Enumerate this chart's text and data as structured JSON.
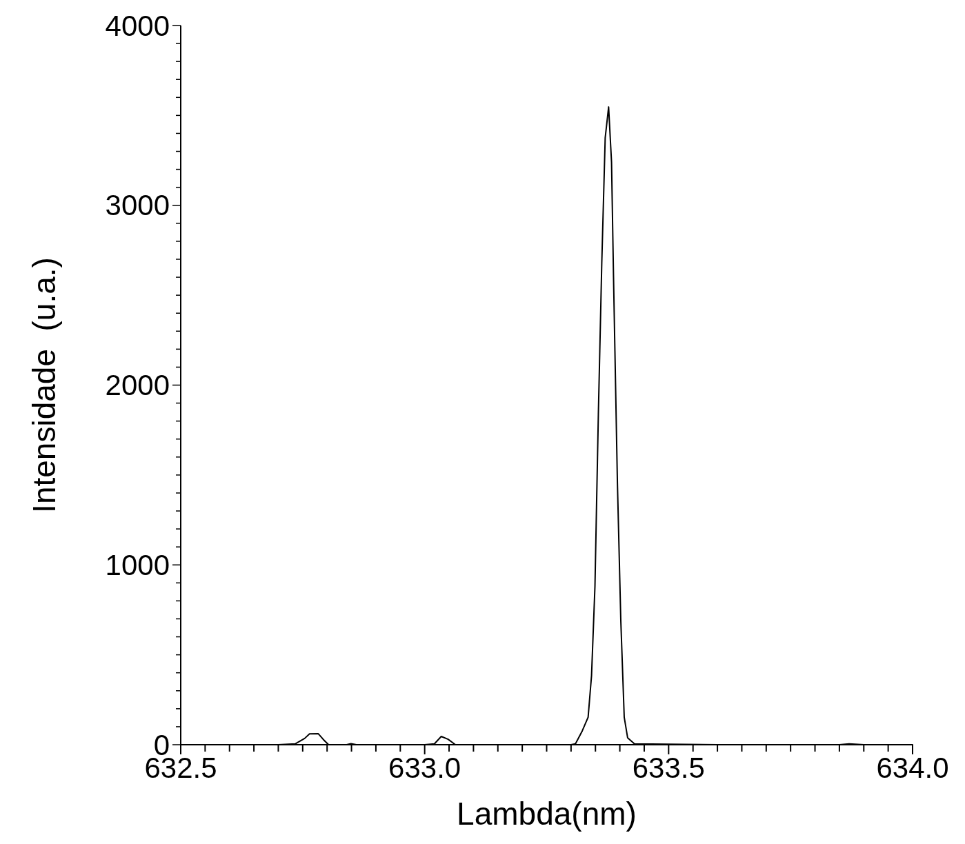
{
  "chart_data": {
    "type": "line",
    "xlabel": "Lambda(nm)",
    "ylabel": "Intensidade  (u.a.)",
    "xlim": [
      632.5,
      634.0
    ],
    "ylim": [
      0,
      4000
    ],
    "xticks": [
      {
        "value": 632.5,
        "label": "632.5"
      },
      {
        "value": 632.55,
        "label": null
      },
      {
        "value": 632.6,
        "label": null
      },
      {
        "value": 632.65,
        "label": null
      },
      {
        "value": 632.7,
        "label": null
      },
      {
        "value": 632.75,
        "label": null
      },
      {
        "value": 632.8,
        "label": null
      },
      {
        "value": 632.85,
        "label": null
      },
      {
        "value": 632.9,
        "label": null
      },
      {
        "value": 632.95,
        "label": null
      },
      {
        "value": 633.0,
        "label": "633.0"
      },
      {
        "value": 633.05,
        "label": null
      },
      {
        "value": 633.1,
        "label": null
      },
      {
        "value": 633.15,
        "label": null
      },
      {
        "value": 633.2,
        "label": null
      },
      {
        "value": 633.25,
        "label": null
      },
      {
        "value": 633.3,
        "label": null
      },
      {
        "value": 633.35,
        "label": null
      },
      {
        "value": 633.4,
        "label": null
      },
      {
        "value": 633.45,
        "label": null
      },
      {
        "value": 633.5,
        "label": "633.5"
      },
      {
        "value": 633.55,
        "label": null
      },
      {
        "value": 633.6,
        "label": null
      },
      {
        "value": 633.65,
        "label": null
      },
      {
        "value": 633.7,
        "label": null
      },
      {
        "value": 633.75,
        "label": null
      },
      {
        "value": 633.8,
        "label": null
      },
      {
        "value": 633.85,
        "label": null
      },
      {
        "value": 633.9,
        "label": null
      },
      {
        "value": 633.95,
        "label": null
      },
      {
        "value": 634.0,
        "label": "634.0"
      }
    ],
    "yticks": [
      0,
      {
        "value": 100,
        "label": null
      },
      {
        "value": 200,
        "label": null
      },
      {
        "value": 300,
        "label": null
      },
      {
        "value": 400,
        "label": null
      },
      {
        "value": 500,
        "label": null
      },
      {
        "value": 600,
        "label": null
      },
      {
        "value": 700,
        "label": null
      },
      {
        "value": 800,
        "label": null
      },
      {
        "value": 900,
        "label": null
      },
      1000,
      {
        "value": 1100,
        "label": null
      },
      {
        "value": 1200,
        "label": null
      },
      {
        "value": 1300,
        "label": null
      },
      {
        "value": 1400,
        "label": null
      },
      {
        "value": 1500,
        "label": null
      },
      {
        "value": 1600,
        "label": null
      },
      {
        "value": 1700,
        "label": null
      },
      {
        "value": 1800,
        "label": null
      },
      {
        "value": 1900,
        "label": null
      },
      2000,
      {
        "value": 2100,
        "label": null
      },
      {
        "value": 2200,
        "label": null
      },
      {
        "value": 2300,
        "label": null
      },
      {
        "value": 2400,
        "label": null
      },
      {
        "value": 2500,
        "label": null
      },
      {
        "value": 2600,
        "label": null
      },
      {
        "value": 2700,
        "label": null
      },
      {
        "value": 2800,
        "label": null
      },
      {
        "value": 2900,
        "label": null
      },
      3000,
      {
        "value": 3100,
        "label": null
      },
      {
        "value": 3200,
        "label": null
      },
      {
        "value": 3300,
        "label": null
      },
      {
        "value": 3400,
        "label": null
      },
      {
        "value": 3500,
        "label": null
      },
      {
        "value": 3600,
        "label": null
      },
      {
        "value": 3700,
        "label": null
      },
      {
        "value": 3800,
        "label": null
      },
      {
        "value": 3900,
        "label": null
      },
      4000
    ],
    "grid": false,
    "marker": "none",
    "line_style": "solid",
    "series": [
      {
        "color": "#000000",
        "x": [
          632.5,
          632.7,
          632.735,
          632.754,
          632.764,
          632.782,
          632.792,
          632.803,
          632.84,
          632.849,
          632.86,
          633.0,
          633.02,
          633.034,
          633.048,
          633.063,
          633.1,
          633.3,
          633.309,
          633.323,
          633.335,
          633.342,
          633.349,
          633.356,
          633.363,
          633.37,
          633.377,
          633.383,
          633.387,
          633.395,
          633.402,
          633.409,
          633.416,
          633.43,
          633.6,
          633.85,
          633.87,
          633.9,
          634.0
        ],
        "values": [
          0,
          0,
          5,
          35,
          60,
          61,
          30,
          0,
          0,
          6,
          0,
          0,
          5,
          46,
          30,
          0,
          0,
          0,
          5,
          77,
          153,
          384,
          880,
          1840,
          2680,
          3375,
          3547,
          3240,
          2610,
          1460,
          690,
          153,
          38,
          5,
          0,
          0,
          5,
          0,
          0
        ]
      }
    ]
  }
}
